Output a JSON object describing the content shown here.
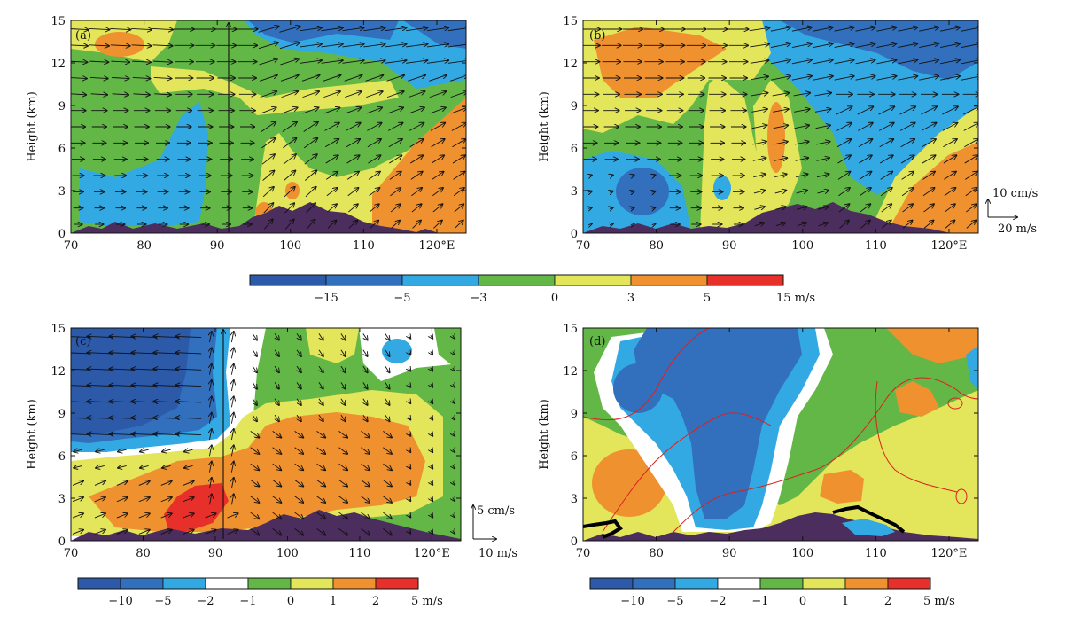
{
  "figure": {
    "y_axis_label": "Height (km)"
  },
  "chart_data": [
    {
      "panel": "(a)",
      "type": "heatmap",
      "x_ticks": [
        "70",
        "80",
        "90",
        "100",
        "110",
        "120°E"
      ],
      "y_ticks": [
        "0",
        "3",
        "6",
        "9",
        "12",
        "15"
      ],
      "xlim": [
        70,
        124
      ],
      "ylim": [
        0,
        15
      ],
      "ylabel": "Height (km)",
      "has_vectors": true,
      "has_terrain": true
    },
    {
      "panel": "(b)",
      "type": "heatmap",
      "x_ticks": [
        "70",
        "80",
        "90",
        "100",
        "110",
        "120°E"
      ],
      "y_ticks": [
        "0",
        "3",
        "6",
        "9",
        "12",
        "15"
      ],
      "xlim": [
        70,
        124
      ],
      "ylim": [
        0,
        15
      ],
      "ylabel": "Height (km)",
      "has_vectors": true,
      "has_terrain": true
    },
    {
      "panel": "(c)",
      "type": "heatmap",
      "x_ticks": [
        "70",
        "80",
        "90",
        "100",
        "110",
        "120°E"
      ],
      "y_ticks": [
        "0",
        "3",
        "6",
        "9",
        "12",
        "15"
      ],
      "xlim": [
        70,
        124
      ],
      "ylim": [
        0,
        15
      ],
      "ylabel": "Height (km)",
      "has_vectors": true,
      "has_terrain": true
    },
    {
      "panel": "(d)",
      "type": "heatmap",
      "x_ticks": [
        "70",
        "80",
        "90",
        "100",
        "110",
        "120°E"
      ],
      "y_ticks": [
        "0",
        "3",
        "6",
        "9",
        "12",
        "15"
      ],
      "xlim": [
        70,
        124
      ],
      "ylim": [
        0,
        15
      ],
      "ylabel": "Height (km)",
      "has_vectors": false,
      "has_terrain": true,
      "has_contours": true
    }
  ],
  "colorbar_top": {
    "labels": [
      "−15",
      "−5",
      "−3",
      "0",
      "3",
      "5",
      "15  m/s"
    ],
    "colors": [
      "#2c5aa8",
      "#3270bd",
      "#33a9e3",
      "#63b746",
      "#e3e65a",
      "#f0912f",
      "#e8302b"
    ]
  },
  "colorbar_bottom_left": {
    "labels": [
      "−10",
      "−5",
      "−2",
      "−1",
      "0",
      "1",
      "2",
      "5  m/s"
    ],
    "colors": [
      "#2c5aa8",
      "#3270bd",
      "#33a9e3",
      "#ffffff",
      "#63b746",
      "#e3e65a",
      "#f0912f",
      "#e8302b"
    ]
  },
  "colorbar_bottom_right": {
    "labels": [
      "−10",
      "−5",
      "−2",
      "−1",
      "0",
      "1",
      "2",
      "5  m/s"
    ],
    "colors": [
      "#2c5aa8",
      "#3270bd",
      "#33a9e3",
      "#ffffff",
      "#63b746",
      "#e3e65a",
      "#f0912f",
      "#e8302b"
    ]
  },
  "reference_top": {
    "vertical": "10  cm/s",
    "horizontal": "20  m/s"
  },
  "reference_bottom": {
    "vertical": "5  cm/s",
    "horizontal": "10  m/s"
  },
  "colors": {
    "terrain": "#4b2d5e",
    "contour": "#d9231d",
    "thick_line": "#000000"
  }
}
